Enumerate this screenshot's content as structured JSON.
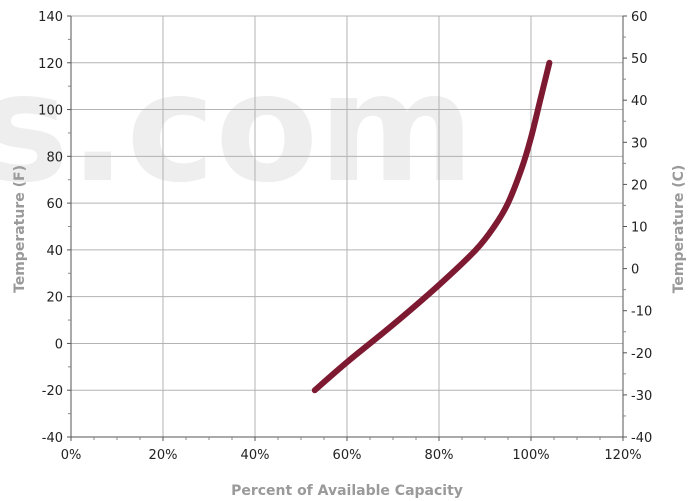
{
  "watermark": "s.com",
  "chart_data": {
    "type": "line",
    "title": "",
    "xlabel": "Percent of Available Capacity",
    "ylabel": "Temperature (F)",
    "y2label": "Temperature (C)",
    "xlim": [
      0,
      120
    ],
    "ylim": [
      -40,
      140
    ],
    "y2lim": [
      -40,
      60
    ],
    "x_ticks": [
      0,
      20,
      40,
      60,
      80,
      100,
      120
    ],
    "x_tick_labels": [
      "0%",
      "20%",
      "40%",
      "60%",
      "80%",
      "100%",
      "120%"
    ],
    "y_ticks": [
      -40,
      -20,
      0,
      20,
      40,
      60,
      80,
      100,
      120,
      140
    ],
    "y_tick_labels": [
      "-40",
      "-20",
      "0",
      "20",
      "40",
      "60",
      "80",
      "100",
      "120",
      "140"
    ],
    "y2_ticks": [
      -40,
      -30,
      -20,
      -10,
      0,
      10,
      20,
      30,
      40,
      50,
      60
    ],
    "y2_tick_labels": [
      "-40",
      "-30",
      "-20",
      "-10",
      "0",
      "10",
      "20",
      "30",
      "40",
      "50",
      "60"
    ],
    "grid": true,
    "series": [
      {
        "color": "#7d1a32",
        "x": [
          53,
          60,
          70,
          80,
          88,
          92,
          95,
          98,
          100,
          102,
          104
        ],
        "y": [
          -20,
          -8,
          8,
          25,
          40,
          50,
          60,
          75,
          88,
          104,
          120
        ]
      }
    ]
  }
}
